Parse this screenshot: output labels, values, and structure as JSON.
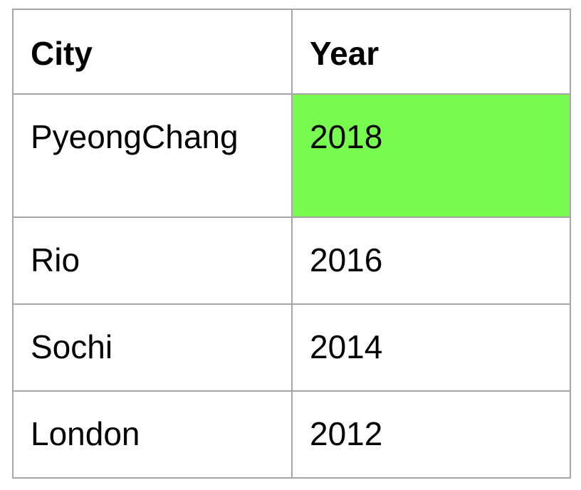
{
  "table": {
    "headers": {
      "city": "City",
      "year": "Year"
    },
    "rows": [
      {
        "city": "PyeongChang",
        "year": "2018",
        "highlighted": true
      },
      {
        "city": "Rio",
        "year": "2016",
        "highlighted": false
      },
      {
        "city": "Sochi",
        "year": "2014",
        "highlighted": false
      },
      {
        "city": "London",
        "year": "2012",
        "highlighted": false
      }
    ],
    "highlight_color": "#77fb50",
    "border_color": "#a6a6a6"
  }
}
